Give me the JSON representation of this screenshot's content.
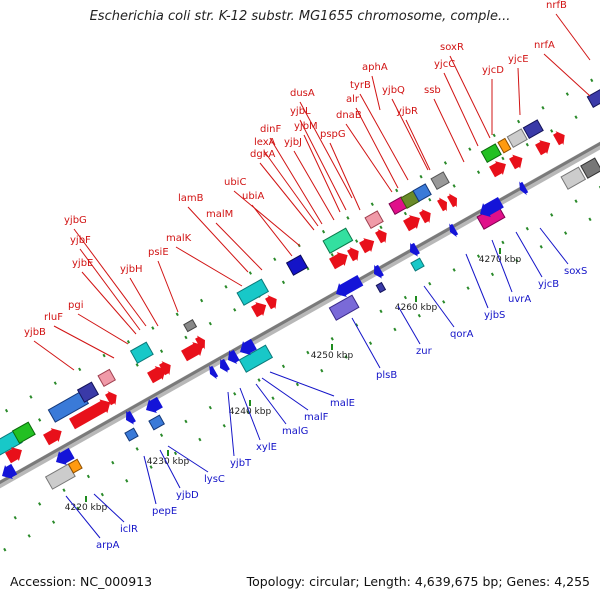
{
  "title": "Escherichia coli str. K-12 substr. MG1655 chromosome, comple...",
  "footer": {
    "accession": "Accession: NC_000913",
    "summary": "Topology: circular; Length: 4,639,675 bp; Genes: 4,255"
  },
  "colors": {
    "above_label": "#d11414",
    "below_label": "#1414c8",
    "backbone": "#8a8a8a",
    "tick": "#1e8c1e",
    "forward_arrow": "#e8101a",
    "reverse_arrow": "#1414d8"
  },
  "scale_ticks": [
    "4220 kbp",
    "4230 kbp",
    "4240 kbp",
    "4250 kbp",
    "4260 kbp",
    "4270 kbp"
  ],
  "genes_above": [
    "nrfB",
    "soxR",
    "nrfA",
    "aphA",
    "yjcC",
    "yjcE",
    "yjcD",
    "tyrB",
    "ssb",
    "dusA",
    "alr",
    "yjbQ",
    "yjbL",
    "dnaB",
    "yjbR",
    "yjbM",
    "pspG",
    "dinF",
    "lexA",
    "yjbJ",
    "dgkA",
    "ubiC",
    "lamB",
    "ubiA",
    "malM",
    "yjbG",
    "malK",
    "yjbF",
    "psiE",
    "yjbE",
    "yjbH",
    "pgi",
    "rluF",
    "yjbB"
  ],
  "genes_below": [
    "soxS",
    "yjcB",
    "uvrA",
    "yjbS",
    "qorA",
    "zur",
    "plsB",
    "malE",
    "malF",
    "malG",
    "xylE",
    "yjbT",
    "lysC",
    "yjbD",
    "pepE",
    "iclR",
    "arpA"
  ]
}
